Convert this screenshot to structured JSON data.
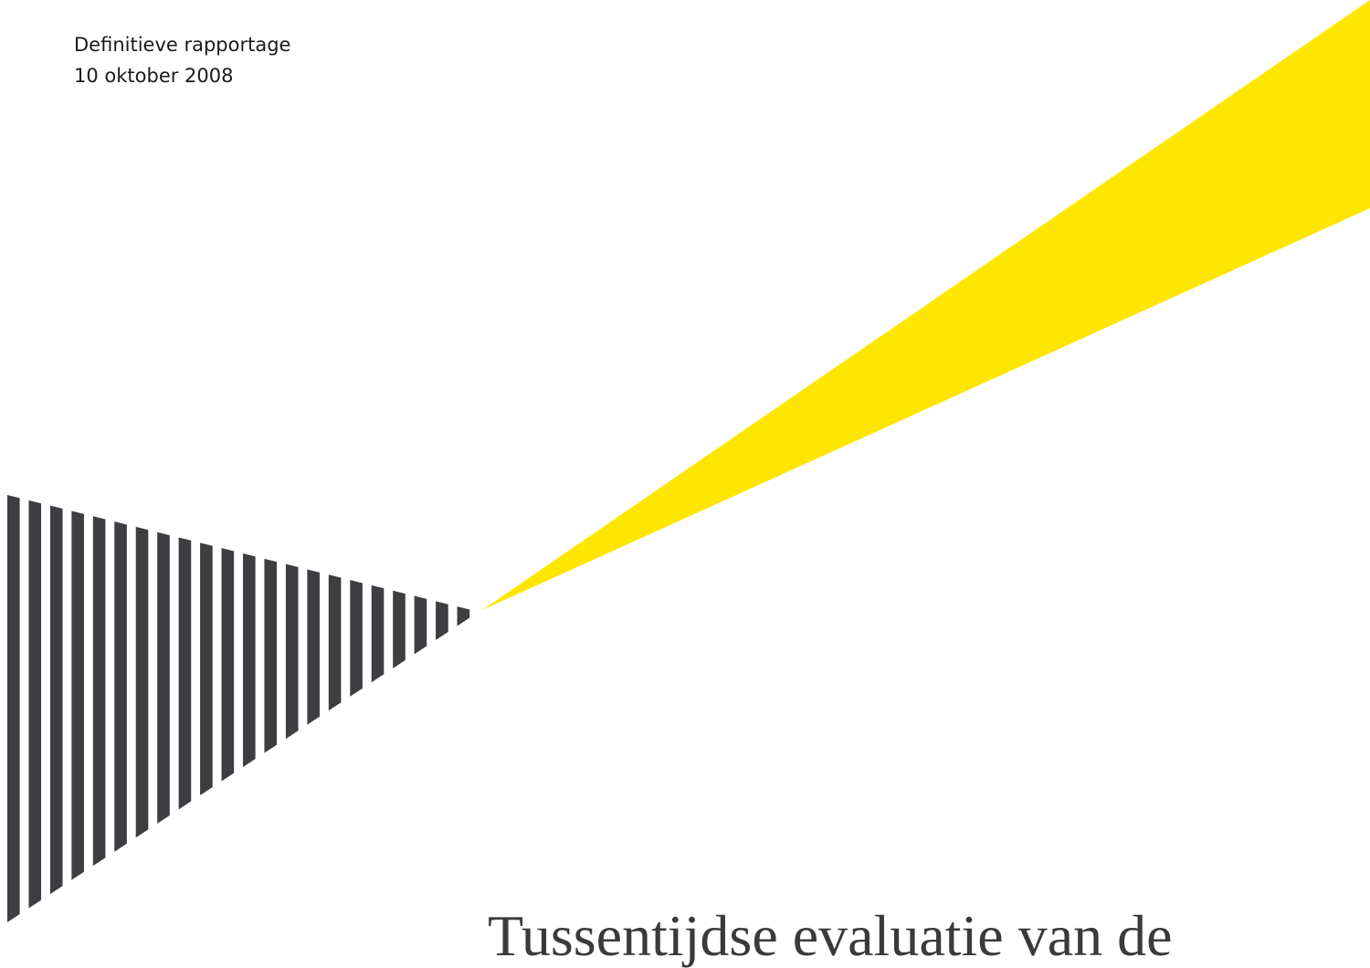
{
  "document": {
    "label": "Definitieve rapportage",
    "date": "10 oktober 2008",
    "title_partial": "Tussentijdse evaluatie van de"
  },
  "colors": {
    "beam": "#FFE600",
    "stripes": "#3E3D41",
    "text": "#1A1A1A"
  }
}
